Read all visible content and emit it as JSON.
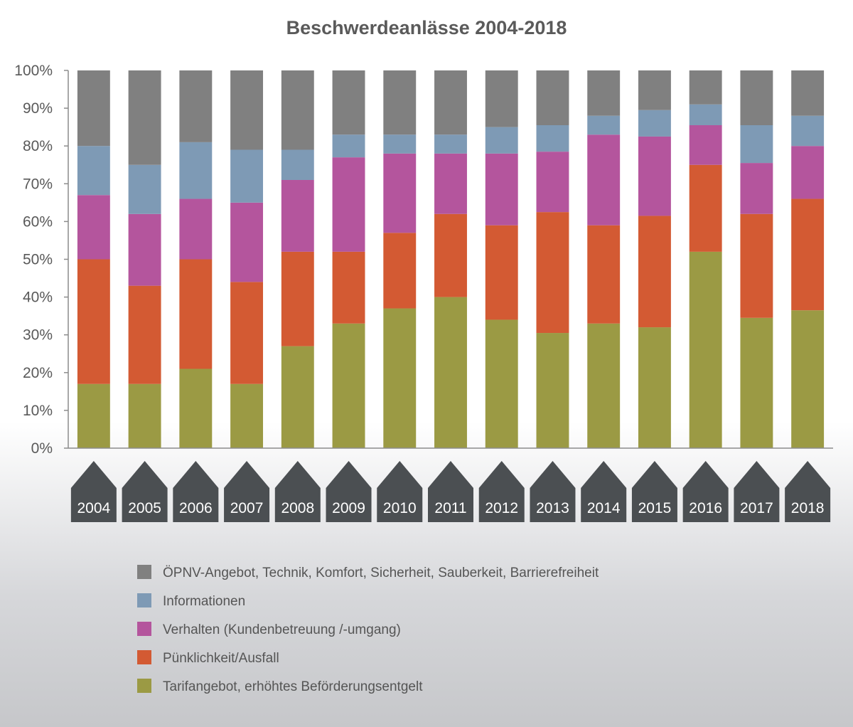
{
  "chart_data": {
    "type": "bar",
    "stacked": true,
    "title": "Beschwerdeanlässe 2004-2018",
    "xlabel": "",
    "ylabel": "",
    "ylim": [
      0,
      100
    ],
    "y_ticks": [
      "0%",
      "10%",
      "20%",
      "30%",
      "40%",
      "50%",
      "60%",
      "70%",
      "80%",
      "90%",
      "100%"
    ],
    "grid": false,
    "legend_position": "bottom",
    "categories": [
      "2004",
      "2005",
      "2006",
      "2007",
      "2008",
      "2009",
      "2010",
      "2011",
      "2012",
      "2013",
      "2014",
      "2015",
      "2016",
      "2017",
      "2018"
    ],
    "series": [
      {
        "name": "Tarifangebot, erhöhtes Beförderungsentgelt",
        "color": "#9b9a44",
        "values": [
          17,
          17,
          21,
          17,
          27,
          33,
          37,
          40,
          34,
          30.5,
          33,
          32,
          52,
          34.5,
          36.5
        ]
      },
      {
        "name": "Pünklichkeit/Ausfall",
        "color": "#d35a33",
        "values": [
          33,
          26,
          29,
          27,
          25,
          19,
          20,
          22,
          25,
          32,
          26,
          29.5,
          23,
          27.5,
          29.5
        ]
      },
      {
        "name": "Verhalten (Kundenbetreuung /-umgang)",
        "color": "#b4559d",
        "values": [
          17,
          19,
          16,
          21,
          19,
          25,
          21,
          16,
          19,
          16,
          24,
          21,
          10.5,
          13.5,
          14
        ]
      },
      {
        "name": "Informationen",
        "color": "#7e9ab5",
        "values": [
          13,
          13,
          15,
          14,
          8,
          6,
          5,
          5,
          7,
          7,
          5,
          7,
          5.5,
          10,
          8
        ]
      },
      {
        "name": "ÖPNV-Angebot, Technik, Komfort, Sicherheit, Sauberkeit, Barrierefreiheit",
        "color": "#808080",
        "values": [
          20,
          25,
          19,
          21,
          21,
          17,
          17,
          17,
          15,
          14.5,
          12,
          10.5,
          9,
          14.5,
          12
        ]
      }
    ]
  }
}
